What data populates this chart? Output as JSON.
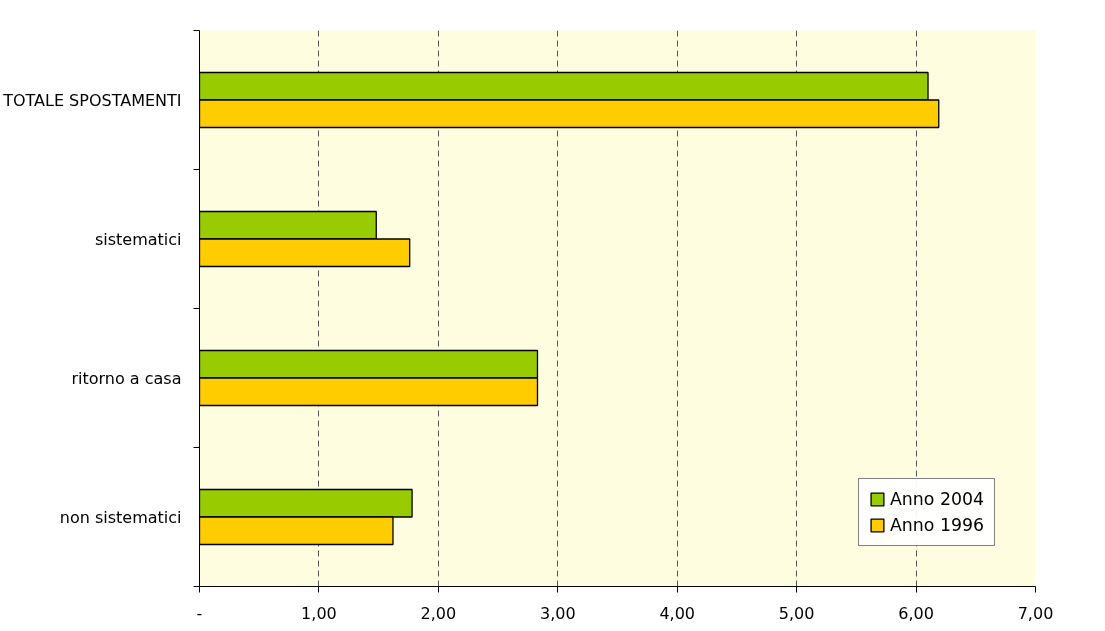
{
  "chart_data": {
    "type": "bar",
    "orientation": "horizontal",
    "categories": [
      "TOTALE SPOSTAMENTI",
      "sistematici",
      "ritorno a casa",
      "non sistematici"
    ],
    "series": [
      {
        "name": "Anno 2004",
        "color": "#99cc00",
        "values": [
          6.1,
          1.48,
          2.83,
          1.78
        ]
      },
      {
        "name": "Anno 1996",
        "color": "#ffcc00",
        "values": [
          6.19,
          1.76,
          2.83,
          1.62
        ]
      }
    ],
    "xlim": [
      0,
      7
    ],
    "xticks": [
      {
        "value": 0,
        "label": "-"
      },
      {
        "value": 1,
        "label": "1,00"
      },
      {
        "value": 2,
        "label": "2,00"
      },
      {
        "value": 3,
        "label": "3,00"
      },
      {
        "value": 4,
        "label": "4,00"
      },
      {
        "value": 5,
        "label": "5,00"
      },
      {
        "value": 6,
        "label": "6,00"
      },
      {
        "value": 7,
        "label": "7,00"
      }
    ],
    "grid": "x",
    "legend": "bottom right"
  }
}
